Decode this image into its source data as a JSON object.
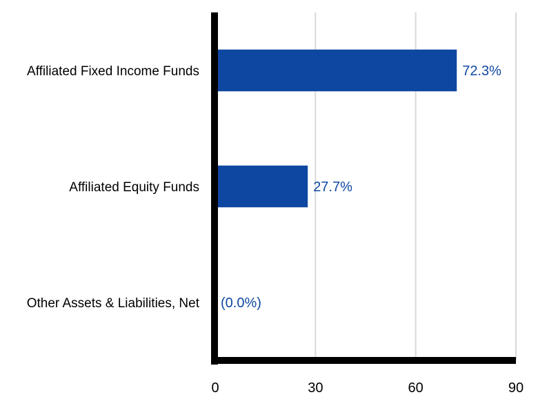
{
  "chart_data": {
    "type": "bar",
    "orientation": "horizontal",
    "categories": [
      "Affiliated Fixed Income Funds",
      "Affiliated Equity Funds",
      "Other Assets & Liabilities, Net"
    ],
    "values": [
      72.3,
      27.7,
      0.0
    ],
    "data_labels": [
      "72.3%",
      "27.7%",
      "(0.0%)"
    ],
    "xlim": [
      0,
      90
    ],
    "xticks": [
      0,
      30,
      60,
      90
    ],
    "xtick_labels": [
      "0",
      "30",
      "60",
      "90"
    ],
    "grid": true,
    "legend": "none",
    "bar_color": "#0e47a1",
    "label_color": "#0e47a1",
    "grid_color": "#d9d9d9",
    "axis_color": "#000000"
  }
}
